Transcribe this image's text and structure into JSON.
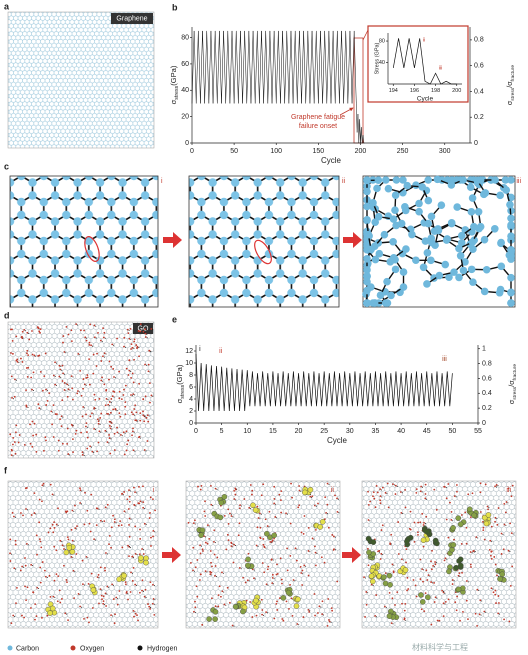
{
  "panel_labels": [
    "a",
    "b",
    "c",
    "d",
    "e",
    "f"
  ],
  "image_labels": {
    "graphene": "Graphene",
    "go": "GO",
    "stages": [
      "i",
      "ii",
      "iii"
    ]
  },
  "failure_note": [
    "Graphene fatigue",
    "failure onset"
  ],
  "legend": [
    {
      "name": "Carbon",
      "color": "#6fb8dc"
    },
    {
      "name": "Oxygen",
      "color": "#c0392b"
    },
    {
      "name": "Hydrogen",
      "color": "#111111"
    }
  ],
  "watermark": "材料科学与工程",
  "chart_data": [
    {
      "type": "line",
      "color": "#111111",
      "x": [
        0,
        2.5,
        5,
        7.5,
        10,
        12.5,
        15,
        17.5,
        20,
        22.5,
        25,
        27.5,
        30,
        32.5,
        35,
        37.5,
        40,
        42.5,
        45,
        47.5,
        50,
        52.5,
        55,
        57.5,
        60,
        62.5,
        65,
        67.5,
        70,
        72.5,
        75,
        77.5,
        80,
        82.5,
        85,
        87.5,
        90,
        92.5,
        95,
        97.5,
        100,
        102.5,
        105,
        107.5,
        110,
        112.5,
        115,
        117.5,
        120,
        122.5,
        125,
        127.5,
        130,
        132.5,
        135,
        137.5,
        140,
        142.5,
        145,
        147.5,
        150,
        152.5,
        155,
        157.5,
        160,
        162.5,
        165,
        167.5,
        170,
        172.5,
        175,
        177.5,
        180,
        182.5,
        185,
        187.5,
        190,
        192.5,
        195,
        196,
        197,
        198,
        199,
        200,
        201,
        202,
        203,
        204,
        205
      ],
      "values": [
        30,
        85,
        30,
        85,
        30,
        85,
        30,
        85,
        30,
        85,
        30,
        85,
        30,
        85,
        30,
        85,
        30,
        85,
        30,
        85,
        30,
        85,
        30,
        85,
        30,
        85,
        30,
        85,
        30,
        85,
        30,
        85,
        30,
        85,
        30,
        85,
        30,
        85,
        30,
        85,
        30,
        85,
        30,
        85,
        30,
        85,
        30,
        85,
        30,
        85,
        30,
        85,
        30,
        85,
        30,
        85,
        30,
        85,
        30,
        85,
        30,
        85,
        30,
        85,
        30,
        85,
        30,
        85,
        30,
        85,
        30,
        85,
        30,
        85,
        30,
        85,
        30,
        85,
        30,
        8,
        22,
        0,
        18,
        0,
        12,
        0,
        6,
        0,
        0
      ],
      "xlim": [
        0,
        330
      ],
      "xticks": [
        0,
        50,
        100,
        150,
        200,
        250,
        300
      ],
      "ylim": [
        0,
        88
      ],
      "yticks": [
        0,
        20,
        40,
        60,
        80
      ],
      "y2lim": [
        0,
        0.9
      ],
      "y2ticks": [
        0,
        0.2,
        0.4,
        0.6,
        0.8
      ],
      "x_label": "Cycle",
      "y_label": [
        {
          "text": "σ"
        },
        {
          "text": "stress",
          "sub": true
        },
        {
          "text": "(GPa)"
        }
      ],
      "y2_label": [
        {
          "text": "σ"
        },
        {
          "text": "stress",
          "sub": true
        },
        {
          "text": "/σ"
        },
        {
          "text": "fracture",
          "sub": true
        }
      ]
    },
    {
      "type": "line",
      "color": "#111111",
      "x": [
        194,
        194.5,
        195,
        195.5,
        196,
        196.5,
        197,
        197.5,
        198,
        198.5,
        199,
        199.5,
        200
      ],
      "values": [
        30,
        85,
        30,
        85,
        30,
        85,
        5,
        0,
        20,
        0,
        5,
        0,
        0
      ],
      "xlim": [
        193.5,
        200.5
      ],
      "xticks": [
        194,
        196,
        198,
        200
      ],
      "ylim": [
        0,
        95
      ],
      "yticks": [
        40,
        80
      ],
      "x_label": "Cycle",
      "y_label": "Stress (GPa)",
      "annotations": [
        {
          "text": "ii",
          "x": 196.8,
          "y": 82,
          "color": "#c0392b"
        },
        {
          "text": "iii",
          "x": 198.3,
          "y": 30,
          "color": "#c0392b"
        }
      ]
    },
    {
      "type": "line",
      "color": "#111111",
      "x": [
        0,
        0.5,
        1,
        1.5,
        2,
        2.5,
        3,
        3.5,
        4,
        4.5,
        5,
        5.5,
        6,
        6.5,
        7,
        7.5,
        8,
        8.5,
        9,
        9.5,
        10,
        10.5,
        11,
        11.5,
        12,
        12.5,
        13,
        13.5,
        14,
        14.5,
        15,
        15.5,
        16,
        16.5,
        17,
        17.5,
        18,
        18.5,
        19,
        19.5,
        20,
        20.5,
        21,
        21.5,
        22,
        22.5,
        23,
        23.5,
        24,
        24.5,
        25,
        25.5,
        26,
        26.5,
        27,
        27.5,
        28,
        28.5,
        29,
        29.5,
        30,
        30.5,
        31,
        31.5,
        32,
        32.5,
        33,
        33.5,
        34,
        34.5,
        35,
        35.5,
        36,
        36.5,
        37,
        37.5,
        38,
        38.5,
        39,
        39.5,
        40,
        40.5,
        41,
        41.5,
        42,
        42.5,
        43,
        43.5,
        44,
        44.5,
        45,
        45.5,
        46,
        46.5,
        47,
        47.5,
        48,
        48.5,
        49,
        49.5,
        50
      ],
      "values": [
        11.5,
        2,
        10,
        2,
        9.8,
        2,
        9.6,
        2,
        9.5,
        2,
        9.4,
        2,
        9.2,
        2,
        9.1,
        2,
        9,
        2,
        8.9,
        2,
        8.8,
        2.8,
        8.6,
        2.8,
        8.3,
        2.8,
        8.6,
        2.8,
        8.3,
        2.8,
        8.6,
        2.8,
        8.3,
        2.8,
        8.6,
        2.8,
        8.3,
        2.8,
        8.6,
        2.8,
        8.3,
        2.8,
        8.6,
        2.8,
        8.3,
        2.8,
        8.6,
        2.8,
        8.3,
        2.8,
        8.6,
        2.8,
        8.3,
        2.8,
        8.6,
        2.8,
        8.3,
        2.8,
        8.6,
        2.8,
        8.3,
        2.8,
        8.6,
        2.8,
        8.3,
        2.8,
        8.6,
        2.8,
        8.3,
        2.8,
        8.6,
        2.8,
        8.3,
        2.8,
        8.6,
        2.8,
        8.3,
        2.8,
        8.6,
        2.8,
        8.3,
        2.8,
        8.6,
        2.8,
        8.3,
        2.8,
        8.6,
        2.8,
        8.3,
        2.8,
        8.6,
        2.8,
        8.3,
        2.8,
        8.6,
        2.8,
        8.3,
        2.8,
        8.6,
        2.8,
        8.3
      ],
      "xlim": [
        0,
        55
      ],
      "xticks": [
        0,
        5,
        10,
        15,
        20,
        25,
        30,
        35,
        40,
        45,
        50,
        55
      ],
      "ylim": [
        0,
        13
      ],
      "yticks": [
        0,
        2,
        4,
        6,
        8,
        10,
        12
      ],
      "y2lim": [
        0,
        1.05
      ],
      "y2ticks": [
        0,
        0.2,
        0.4,
        0.6,
        0.8,
        1.0
      ],
      "x_label": "Cycle",
      "y_label": [
        {
          "text": "σ"
        },
        {
          "text": "stress",
          "sub": true
        },
        {
          "text": "(GPa)"
        }
      ],
      "y2_label": [
        {
          "text": "σ"
        },
        {
          "text": "stress",
          "sub": true
        },
        {
          "text": "/σ"
        },
        {
          "text": "fracture",
          "sub": true
        }
      ],
      "annotations": [
        {
          "text": "i",
          "x": 0.6,
          "y": 12.3,
          "color": "#111111"
        },
        {
          "text": "ii",
          "x": 4.5,
          "y": 12,
          "color": "#c0392b"
        },
        {
          "text": "iii",
          "x": 48,
          "y": 10.6,
          "color": "#a04020"
        }
      ]
    }
  ]
}
